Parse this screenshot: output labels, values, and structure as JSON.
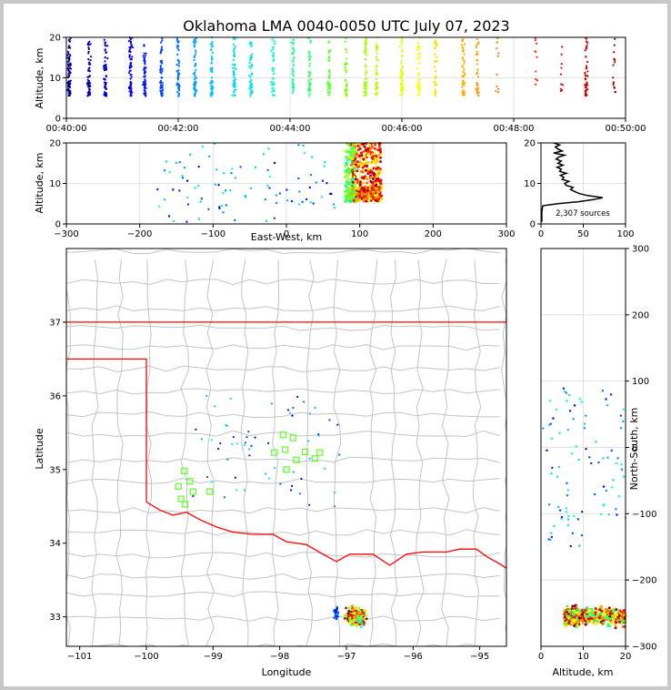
{
  "chart_data": {
    "type": "scatter",
    "title": "Oklahoma LMA 0040-0050 UTC July 07, 2023",
    "panels": {
      "time_altitude": {
        "ylabel": "Altitude, km",
        "xlim": [
          "00:40:00",
          "00:50:00"
        ],
        "ylim": [
          0,
          20
        ],
        "x_ticks": [
          "00:40:00",
          "00:42:00",
          "00:44:00",
          "00:46:00",
          "00:48:00",
          "00:50:00"
        ],
        "y_ticks": [
          "0",
          "10",
          "20"
        ],
        "color_by": "time",
        "colormap": [
          "#00008b",
          "#0000ff",
          "#00bfff",
          "#00ffd0",
          "#7fff00",
          "#ffff00",
          "#ff8c00",
          "#ff0000",
          "#8b0000"
        ],
        "bursts": [
          {
            "t_min": 0.05,
            "count": 90
          },
          {
            "t_min": 0.4,
            "count": 60
          },
          {
            "t_min": 0.7,
            "count": 55
          },
          {
            "t_min": 1.15,
            "count": 70
          },
          {
            "t_min": 1.4,
            "count": 60
          },
          {
            "t_min": 1.7,
            "count": 55
          },
          {
            "t_min": 2.0,
            "count": 50
          },
          {
            "t_min": 2.3,
            "count": 55
          },
          {
            "t_min": 2.6,
            "count": 60
          },
          {
            "t_min": 3.0,
            "count": 55
          },
          {
            "t_min": 3.3,
            "count": 55
          },
          {
            "t_min": 3.7,
            "count": 45
          },
          {
            "t_min": 4.05,
            "count": 45
          },
          {
            "t_min": 4.35,
            "count": 45
          },
          {
            "t_min": 4.7,
            "count": 45
          },
          {
            "t_min": 5.0,
            "count": 35
          },
          {
            "t_min": 5.35,
            "count": 55
          },
          {
            "t_min": 5.55,
            "count": 45
          },
          {
            "t_min": 6.0,
            "count": 55
          },
          {
            "t_min": 6.3,
            "count": 50
          },
          {
            "t_min": 6.6,
            "count": 35
          },
          {
            "t_min": 7.1,
            "count": 55
          },
          {
            "t_min": 7.35,
            "count": 35
          },
          {
            "t_min": 7.7,
            "count": 10
          },
          {
            "t_min": 8.4,
            "count": 10
          },
          {
            "t_min": 8.85,
            "count": 10
          },
          {
            "t_min": 9.3,
            "count": 45
          },
          {
            "t_min": 9.8,
            "count": 15
          }
        ]
      },
      "east_west_altitude": {
        "xlabel": "East-West, km",
        "ylabel": "Altitude, km",
        "xlim": [
          -300,
          300
        ],
        "ylim": [
          0,
          20
        ],
        "x_ticks": [
          "−300",
          "−200",
          "−100",
          "0",
          "100",
          "200",
          "300"
        ],
        "y_ticks": [
          "0",
          "10",
          "20"
        ]
      },
      "altitude_histogram": {
        "xlim": [
          0,
          100
        ],
        "ylim": [
          0,
          20
        ],
        "x_ticks": [
          "0",
          "50",
          "100"
        ],
        "y_ticks": [
          "0",
          "10",
          "20"
        ],
        "annotation": "2,307 sources",
        "profile": [
          {
            "alt": 0.5,
            "count": 1
          },
          {
            "alt": 3,
            "count": 1
          },
          {
            "alt": 4.5,
            "count": 2
          },
          {
            "alt": 5,
            "count": 20
          },
          {
            "alt": 5.5,
            "count": 45
          },
          {
            "alt": 6,
            "count": 62
          },
          {
            "alt": 6.5,
            "count": 73
          },
          {
            "alt": 7,
            "count": 55
          },
          {
            "alt": 7.5,
            "count": 45
          },
          {
            "alt": 8,
            "count": 40
          },
          {
            "alt": 8.5,
            "count": 35
          },
          {
            "alt": 9,
            "count": 38
          },
          {
            "alt": 9.5,
            "count": 30
          },
          {
            "alt": 10,
            "count": 28
          },
          {
            "alt": 10.5,
            "count": 33
          },
          {
            "alt": 11,
            "count": 25
          },
          {
            "alt": 11.5,
            "count": 27
          },
          {
            "alt": 12,
            "count": 23
          },
          {
            "alt": 12.5,
            "count": 30
          },
          {
            "alt": 13,
            "count": 22
          },
          {
            "alt": 13.5,
            "count": 24
          },
          {
            "alt": 14,
            "count": 19
          },
          {
            "alt": 14.5,
            "count": 26
          },
          {
            "alt": 15,
            "count": 20
          },
          {
            "alt": 15.5,
            "count": 24
          },
          {
            "alt": 16,
            "count": 18
          },
          {
            "alt": 16.5,
            "count": 21
          },
          {
            "alt": 17,
            "count": 28
          },
          {
            "alt": 17.5,
            "count": 15
          },
          {
            "alt": 18,
            "count": 25
          },
          {
            "alt": 18.5,
            "count": 20
          },
          {
            "alt": 19,
            "count": 17
          },
          {
            "alt": 19.5,
            "count": 22
          },
          {
            "alt": 20,
            "count": 15
          }
        ]
      },
      "plan_view": {
        "xlabel": "Longitude",
        "ylabel": "Latitude",
        "xlim": [
          -101.2,
          -94.6
        ],
        "ylim": [
          32.6,
          38.0
        ],
        "x_ticks": [
          "−101",
          "−100",
          "−99",
          "−98",
          "−97",
          "−96",
          "−95"
        ],
        "y_ticks": [
          "33",
          "34",
          "35",
          "36",
          "37"
        ],
        "state_boundary_color": "#ff0000",
        "county_line_color": "#c0c0c0",
        "station_color": "#66ff33",
        "stations": [
          {
            "lon": -97.95,
            "lat": 35.47
          },
          {
            "lon": -97.8,
            "lat": 35.43
          },
          {
            "lon": -98.08,
            "lat": 35.23
          },
          {
            "lon": -97.92,
            "lat": 35.27
          },
          {
            "lon": -97.62,
            "lat": 35.24
          },
          {
            "lon": -97.4,
            "lat": 35.23
          },
          {
            "lon": -97.47,
            "lat": 35.15
          },
          {
            "lon": -97.75,
            "lat": 35.13
          },
          {
            "lon": -97.9,
            "lat": 35.0
          },
          {
            "lon": -99.43,
            "lat": 34.98
          },
          {
            "lon": -99.35,
            "lat": 34.84
          },
          {
            "lon": -99.52,
            "lat": 34.77
          },
          {
            "lon": -99.3,
            "lat": 34.7
          },
          {
            "lon": -99.48,
            "lat": 34.6
          },
          {
            "lon": -99.42,
            "lat": 34.53
          },
          {
            "lon": -99.05,
            "lat": 34.7
          }
        ]
      },
      "altitude_north_south": {
        "xlabel": "Altitude, km",
        "ylabel": "North-South, km",
        "xlim": [
          0,
          20
        ],
        "ylim": [
          -300,
          300
        ],
        "x_ticks": [
          "0",
          "10",
          "20"
        ],
        "y_ticks": [
          "−300",
          "−200",
          "−100",
          "0",
          "100",
          "200",
          "300"
        ]
      }
    }
  }
}
